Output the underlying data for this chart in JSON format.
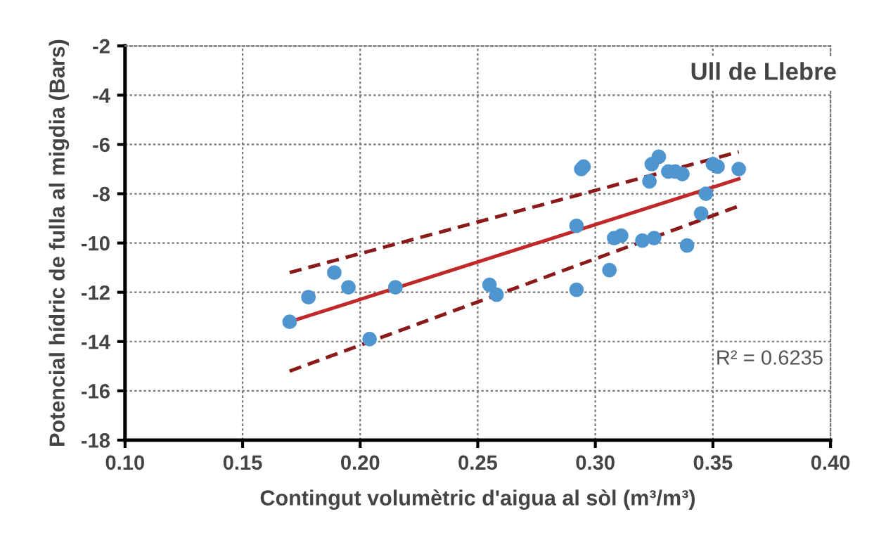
{
  "chart_data": {
    "type": "scatter",
    "xlabel": "Contingut volumètric d'aigua al sòl (m³/m³)",
    "ylabel": "Potencial hídric de fulla al migdia (Bars)",
    "annotations": [
      "Ull de Llebre",
      "R² = 0.6235"
    ],
    "xlim": [
      0.1,
      0.4
    ],
    "xticks": [
      {
        "value": 0.1,
        "label": "0.10"
      },
      {
        "value": 0.15,
        "label": "0.15"
      },
      {
        "value": 0.2,
        "label": "0.20"
      },
      {
        "value": 0.25,
        "label": "0.25"
      },
      {
        "value": 0.3,
        "label": "0.30"
      },
      {
        "value": 0.35,
        "label": "0.35"
      },
      {
        "value": 0.4,
        "label": "0.40"
      }
    ],
    "ylim": [
      -18,
      -2
    ],
    "yticks": [
      -18,
      -16,
      -14,
      -12,
      -10,
      -8,
      -6,
      -4,
      -2
    ],
    "grid": true,
    "legend": false,
    "series": [
      {
        "color": "#4f95d0",
        "marker": "circle",
        "x": [
          0.17,
          0.178,
          0.189,
          0.195,
          0.204,
          0.215,
          0.255,
          0.258,
          0.292,
          0.292,
          0.294,
          0.295,
          0.306,
          0.308,
          0.311,
          0.32,
          0.325,
          0.323,
          0.324,
          0.327,
          0.331,
          0.334,
          0.337,
          0.339,
          0.345,
          0.347,
          0.35,
          0.352,
          0.361
        ],
        "values": [
          -13.2,
          -12.2,
          -11.2,
          -11.8,
          -13.9,
          -11.8,
          -11.7,
          -12.1,
          -9.3,
          -11.9,
          -7.0,
          -6.9,
          -11.1,
          -9.8,
          -9.7,
          -9.9,
          -9.8,
          -7.5,
          -6.8,
          -6.5,
          -7.1,
          -7.1,
          -7.2,
          -10.1,
          -8.8,
          -8.0,
          -6.8,
          -6.9,
          -7.0
        ]
      },
      {
        "type": "line",
        "color": "#c0282a",
        "line_style": "solid",
        "x": [
          0.17,
          0.361
        ],
        "values": [
          -13.2,
          -7.4
        ]
      },
      {
        "type": "line",
        "color": "#8b1a1a",
        "line_style": "dashed",
        "x": [
          0.17,
          0.361
        ],
        "values": [
          -11.2,
          -6.3
        ]
      },
      {
        "type": "line",
        "color": "#8b1a1a",
        "line_style": "dashed",
        "x": [
          0.17,
          0.361
        ],
        "values": [
          -15.2,
          -8.5
        ]
      }
    ]
  }
}
